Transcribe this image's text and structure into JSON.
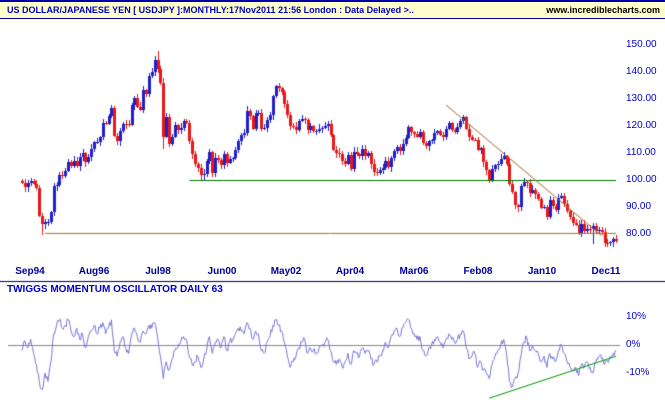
{
  "header": {
    "title": "US DOLLAR/JAPANESE YEN [ USDJPY ]:MONTHLY:17Nov2011 21:56 London : Data Delayed >..",
    "site": "www.incrediblecharts.com"
  },
  "colors": {
    "header_bg": "#ffffcc",
    "header_text": "#0000cc",
    "site_text": "#000000",
    "frame": "#0000aa",
    "divider": "#000066",
    "price_axis_text": "#0000cc",
    "time_axis_text": "#000099",
    "background": "#ffffff"
  },
  "chart_data": [
    {
      "type": "candlestick",
      "title": "US DOLLAR/JAPANESE YEN [ USDJPY ] MONTHLY",
      "interval": "monthly",
      "start": "Sep 1994",
      "end": "Nov 2011",
      "ylim": [
        70,
        158
      ],
      "y_ticks": [
        150,
        140,
        130,
        120,
        110,
        100,
        90,
        80
      ],
      "y_tick_labels": [
        "150.00",
        "140.00",
        "130.00",
        "120.00",
        "110.00",
        "100.00",
        "90.00",
        "80.00"
      ],
      "x_tick_labels": [
        "Sep94",
        "Aug96",
        "Jul98",
        "Jun00",
        "May02",
        "Apr04",
        "Mar06",
        "Feb08",
        "Jan10",
        "Dec11"
      ],
      "first_open": 99.8,
      "closes": [
        98.9,
        97.4,
        98.9,
        99.6,
        98.6,
        96.9,
        86.8,
        83.7,
        84.6,
        84.6,
        88.3,
        97.6,
        98.0,
        101.9,
        101.6,
        103.5,
        106.8,
        105.2,
        107.0,
        105.2,
        108.4,
        109.9,
        106.7,
        108.5,
        111.5,
        113.9,
        114.0,
        115.9,
        121.1,
        120.9,
        123.8,
        126.7,
        116.4,
        114.3,
        118.1,
        120.9,
        120.6,
        120.4,
        127.7,
        130.4,
        127.2,
        126.1,
        133.4,
        132.0,
        138.7,
        140.0,
        144.6,
        141.2,
        136.0,
        116.0,
        123.3,
        113.2,
        116.1,
        120.3,
        118.4,
        119.4,
        121.7,
        121.0,
        114.3,
        109.5,
        106.0,
        104.4,
        101.7,
        102.2,
        107.2,
        110.3,
        102.7,
        108.1,
        107.3,
        105.5,
        109.5,
        106.4,
        107.8,
        108.3,
        111.0,
        114.4,
        116.7,
        117.3,
        125.5,
        123.6,
        119.0,
        124.7,
        124.9,
        118.9,
        119.2,
        122.2,
        123.9,
        131.0,
        134.7,
        133.9,
        132.7,
        128.0,
        124.0,
        119.9,
        119.8,
        118.4,
        121.7,
        122.5,
        122.4,
        118.7,
        119.9,
        118.1,
        118.1,
        119.0,
        119.4,
        119.9,
        120.6,
        116.8,
        111.1,
        110.0,
        109.6,
        107.2,
        105.9,
        109.2,
        104.2,
        110.4,
        109.5,
        108.9,
        111.4,
        109.0,
        110.1,
        105.8,
        103.1,
        102.7,
        103.6,
        104.6,
        107.2,
        104.8,
        108.2,
        110.9,
        112.4,
        110.6,
        113.5,
        115.7,
        119.8,
        117.9,
        117.2,
        116.0,
        117.8,
        113.8,
        112.5,
        114.5,
        114.7,
        117.3,
        118.1,
        116.8,
        115.8,
        119.0,
        121.2,
        118.5,
        117.8,
        119.5,
        121.7,
        123.2,
        118.9,
        115.8,
        115.0,
        114.8,
        111.2,
        111.7,
        106.6,
        103.7,
        99.7,
        104.0,
        105.5,
        106.1,
        107.9,
        108.8,
        106.1,
        98.4,
        95.5,
        90.6,
        89.9,
        97.6,
        99.2,
        98.9,
        95.3,
        96.3,
        94.7,
        93.0,
        89.7,
        90.1,
        86.4,
        92.5,
        90.3,
        88.8,
        93.4,
        94.0,
        91.1,
        88.4,
        86.4,
        84.2,
        83.5,
        80.4,
        83.7,
        81.1,
        82.0,
        81.7,
        83.1,
        81.2,
        81.5,
        80.6,
        76.8,
        76.7,
        77.1,
        78.1,
        77.5
      ],
      "overrides": {
        "7": {
          "l": 79.75
        },
        "47": {
          "h": 147.67
        },
        "49": {
          "l": 111.6
        },
        "88": {
          "h": 135.15
        },
        "153": {
          "h": 124.14
        },
        "198": {
          "l": 76.25
        },
        "205": {
          "l": 75.35
        }
      },
      "up_color": "#2020c8",
      "down_color": "#e81818",
      "trendlines": [
        {
          "name": "horizontal-support-80",
          "color": "#a07818",
          "from": {
            "i": 8,
            "v": 80.4
          },
          "to": {
            "i": 206,
            "v": 80.4
          }
        },
        {
          "name": "horizontal-resistance-100",
          "color": "#007a00",
          "from": {
            "i": 58,
            "v": 100.0
          },
          "to": {
            "i": 206,
            "v": 100.0
          }
        },
        {
          "name": "descending-trendline",
          "color": "#a5682a",
          "from": {
            "i": 147,
            "v": 128.0
          },
          "to": {
            "i": 201,
            "v": 79.5
          }
        }
      ]
    },
    {
      "type": "line",
      "title": "TWIGGS MOMENTUM OSCILLATOR DAILY 63",
      "ylim": [
        -21,
        15
      ],
      "y_ticks": [
        10,
        0,
        -10
      ],
      "y_tick_labels": [
        "10%",
        "0%",
        "-10%"
      ],
      "line_color": "#7878d8",
      "zero_line_color": "#888888",
      "values": [
        -2,
        1.5,
        -1,
        2,
        -3,
        -7,
        -13,
        -16,
        -10,
        -13,
        -6,
        4,
        7,
        9,
        6,
        7,
        9,
        5,
        3,
        6,
        2,
        4,
        -1,
        3,
        5,
        7,
        4,
        6,
        8,
        4,
        6,
        9,
        -2,
        -4,
        1,
        3,
        -1,
        -3,
        4,
        6,
        3,
        1,
        5,
        4,
        7,
        6,
        8,
        3,
        -4,
        -12,
        -6,
        -9,
        -5,
        -2,
        -1,
        1,
        3,
        2,
        -4,
        -7,
        -6,
        -4,
        -8,
        -5,
        -2,
        3,
        -3,
        1,
        2,
        -1,
        3,
        -2,
        1,
        2,
        4,
        6,
        5,
        4,
        8,
        6,
        2,
        5,
        4,
        -2,
        -3,
        1,
        3,
        7,
        9,
        7,
        5,
        1,
        -4,
        -8,
        -6,
        -4,
        -1,
        1,
        2,
        -3,
        -1,
        -2,
        -3,
        -1,
        0,
        1,
        2,
        -2,
        -6,
        -7,
        -5,
        -8,
        -6,
        -3,
        -7,
        -2,
        -3,
        -4,
        -1,
        -3,
        -2,
        -5,
        -7,
        -6,
        -4,
        -2,
        1,
        -1,
        3,
        5,
        6,
        3,
        6,
        8,
        9,
        6,
        4,
        2,
        3,
        -2,
        -4,
        -1,
        0,
        2,
        3,
        1,
        -1,
        2,
        4,
        2,
        1,
        2,
        4,
        5,
        -1,
        -5,
        -4,
        -3,
        -8,
        -6,
        -9,
        -10,
        -12,
        -7,
        -4,
        -2,
        0,
        2,
        -3,
        -13,
        -15,
        -12,
        -10,
        -4,
        1,
        3,
        -2,
        0,
        -2,
        -3,
        -6,
        -4,
        -8,
        -3,
        -5,
        -6,
        -2,
        0,
        -3,
        -6,
        -8,
        -9,
        -8,
        -11,
        -7,
        -8,
        -6,
        -8,
        -10,
        -6,
        -4,
        -5,
        -7,
        -6,
        -4,
        -3,
        -2
      ],
      "trendline": {
        "name": "rising-green-trendline",
        "color": "#009900",
        "from": {
          "i": 162,
          "v": -19
        },
        "to": {
          "i": 206,
          "v": -4
        }
      }
    }
  ]
}
